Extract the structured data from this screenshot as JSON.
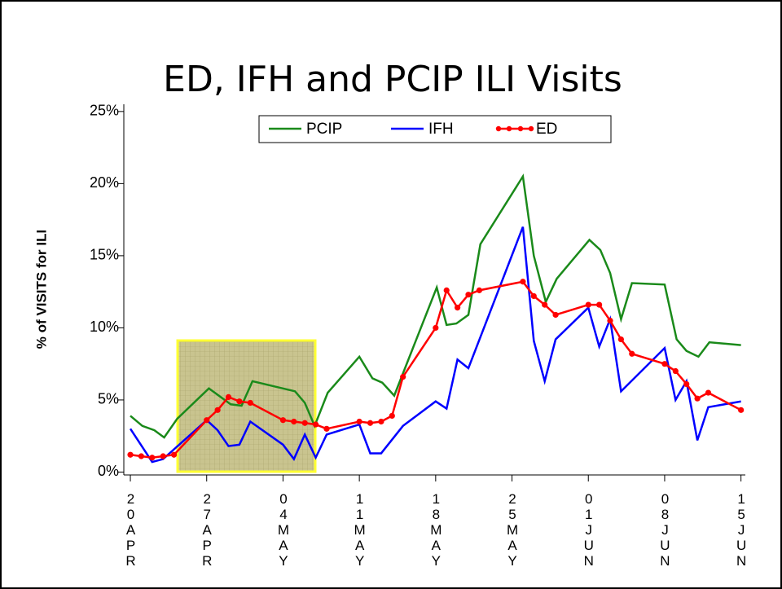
{
  "chart_data": {
    "type": "line",
    "title": "ED, IFH and PCIP ILI Visits",
    "y_label": "% of VISITS for ILI",
    "xlim": [
      -0.6,
      56.4
    ],
    "xticks": [
      {
        "value": 0,
        "label": "20APR"
      },
      {
        "value": 7,
        "label": "27APR"
      },
      {
        "value": 14,
        "label": "04MAY"
      },
      {
        "value": 21,
        "label": "11MAY"
      },
      {
        "value": 28,
        "label": "18MAY"
      },
      {
        "value": 35,
        "label": "25MAY"
      },
      {
        "value": 42,
        "label": "01JUN"
      },
      {
        "value": 49,
        "label": "08JUN"
      },
      {
        "value": 56,
        "label": "15JUN"
      }
    ],
    "ylim": [
      -0.2,
      25.5
    ],
    "yticks": [
      {
        "value": 0,
        "label": "0%"
      },
      {
        "value": 5,
        "label": "5%"
      },
      {
        "value": 10,
        "label": "10%"
      },
      {
        "value": 15,
        "label": "15%"
      },
      {
        "value": 20,
        "label": "20%"
      },
      {
        "value": 25,
        "label": "25%"
      }
    ],
    "legend": "top",
    "series": [
      {
        "name": "PCIP",
        "color": "#1a8a1a",
        "markers": false,
        "x": [
          0,
          1.1,
          2.2,
          3.1,
          4.3,
          7.2,
          9.2,
          10.2,
          11.2,
          15.1,
          16,
          16.9,
          18.1,
          21,
          22.2,
          23.1,
          24.2,
          28.1,
          29,
          29.9,
          31,
          32.1,
          36,
          37,
          38.1,
          39.1,
          42.1,
          43.1,
          44,
          45,
          46,
          49,
          50.1,
          51,
          52.1,
          53.1,
          56
        ],
        "values": [
          3.9,
          3.2,
          2.9,
          2.4,
          3.7,
          5.8,
          4.7,
          4.6,
          6.3,
          5.6,
          4.8,
          3.2,
          5.5,
          8.0,
          6.5,
          6.2,
          5.3,
          12.8,
          10.2,
          10.3,
          10.9,
          15.8,
          20.5,
          15.0,
          11.8,
          13.4,
          16.1,
          15.4,
          13.8,
          10.6,
          13.1,
          13.0,
          9.2,
          8.4,
          8.0,
          9.0,
          8.8
        ]
      },
      {
        "name": "IFH",
        "color": "#0000ff",
        "markers": false,
        "x": [
          0,
          2,
          3,
          7,
          8,
          9,
          10,
          11,
          14,
          15,
          16,
          17,
          18,
          21,
          22,
          23,
          25,
          28,
          29,
          30,
          31,
          36,
          37,
          38,
          39,
          42,
          43,
          44,
          45,
          49,
          50,
          51,
          52,
          53,
          56
        ],
        "values": [
          3.0,
          0.7,
          0.9,
          3.6,
          2.9,
          1.8,
          1.9,
          3.5,
          1.9,
          0.9,
          2.6,
          1.0,
          2.6,
          3.3,
          1.3,
          1.3,
          3.2,
          4.9,
          4.4,
          7.8,
          7.2,
          17.0,
          9.1,
          6.3,
          9.2,
          11.4,
          8.7,
          10.6,
          5.6,
          8.6,
          5.0,
          6.3,
          2.2,
          4.5,
          4.9
        ]
      },
      {
        "name": "ED",
        "color": "#ff0000",
        "markers": true,
        "x": [
          0,
          1,
          2,
          3,
          4,
          7,
          8,
          9,
          10,
          11,
          14,
          15,
          16,
          17,
          18,
          21,
          22,
          23,
          24,
          25,
          28,
          29,
          30,
          31,
          32,
          36,
          37,
          38,
          39,
          42,
          43,
          44,
          45,
          46,
          49,
          50,
          51,
          52,
          53,
          56
        ],
        "values": [
          1.2,
          1.1,
          1.0,
          1.1,
          1.2,
          3.6,
          4.3,
          5.2,
          4.9,
          4.8,
          3.6,
          3.5,
          3.4,
          3.3,
          3.0,
          3.5,
          3.4,
          3.5,
          3.9,
          6.6,
          10.0,
          12.6,
          11.4,
          12.3,
          12.6,
          13.2,
          12.2,
          11.6,
          10.9,
          11.6,
          11.6,
          10.5,
          9.2,
          8.2,
          7.5,
          7.0,
          6.1,
          5.1,
          5.5,
          4.3
        ]
      }
    ]
  }
}
